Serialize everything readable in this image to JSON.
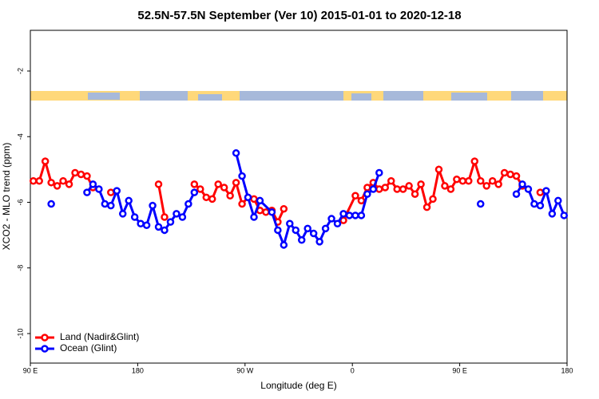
{
  "chart_data": {
    "type": "line",
    "title": "52.5N-57.5N September (Ver 10)   2015-01-01 to 2020-12-18",
    "x_label": "Longitude (deg E)",
    "y_label": "XCO2 - MLO trend (ppm)",
    "xlim": [
      90,
      540
    ],
    "ylim": [
      -10.9,
      -0.76
    ],
    "xticks": [
      {
        "value": 90,
        "label": "90 E"
      },
      180,
      {
        "value": 270,
        "label": "90 W"
      },
      {
        "value": 360,
        "label": "0"
      },
      {
        "value": 450,
        "label": "90 E"
      },
      {
        "value": 540,
        "label": "180"
      }
    ],
    "yticks": [
      -2,
      -4,
      -6,
      -8,
      -10
    ],
    "legend": "bottom-left",
    "series": [
      {
        "name": "Land (Nadir&Glint)",
        "color": "#ff0000",
        "x": [
          92.5,
          97.5,
          102.5,
          107.5,
          112.5,
          117.5,
          122.5,
          127.5,
          132.5,
          137.5,
          142.5,
          null,
          157.5,
          null,
          197.5,
          202.5,
          null,
          227.5,
          232.5,
          237.5,
          242.5,
          247.5,
          252.5,
          257.5,
          262.5,
          267.5,
          272.5,
          277.5,
          282.5,
          287.5,
          292.5,
          297.5,
          302.5,
          null,
          352.5,
          362.5,
          367.5,
          372.5,
          377.5,
          382.5,
          387.5,
          392.5,
          397.5,
          402.5,
          407.5,
          412.5,
          417.5,
          422.5,
          427.5,
          432.5,
          437.5,
          442.5,
          447.5,
          452.5,
          457.5,
          462.5,
          467.5,
          472.5,
          477.5,
          482.5,
          487.5,
          492.5,
          497.5,
          502.5,
          null,
          517.5
        ],
        "values": [
          -5.35,
          -5.35,
          -4.75,
          -5.4,
          -5.5,
          -5.35,
          -5.45,
          -5.1,
          -5.15,
          -5.2,
          -5.55,
          null,
          -5.7,
          null,
          -5.45,
          -6.45,
          null,
          -5.45,
          -5.6,
          -5.85,
          -5.9,
          -5.45,
          -5.55,
          -5.8,
          -5.4,
          -6.05,
          -5.85,
          -5.9,
          -6.25,
          -6.3,
          -6.25,
          -6.6,
          -6.2,
          null,
          -6.55,
          -5.8,
          -5.95,
          -5.55,
          -5.4,
          -5.6,
          -5.55,
          -5.35,
          -5.6,
          -5.6,
          -5.5,
          -5.75,
          -5.45,
          -6.15,
          -5.9,
          -5.0,
          -5.5,
          -5.6,
          -5.3,
          -5.35,
          -5.35,
          -4.75,
          -5.35,
          -5.5,
          -5.35,
          -5.45,
          -5.1,
          -5.15,
          -5.2,
          -5.5,
          null,
          -5.7
        ]
      },
      {
        "name": "Ocean (Glint)",
        "color": "#0000ff",
        "x": [
          107.5,
          null,
          137.5,
          142.5,
          147.5,
          152.5,
          157.5,
          162.5,
          167.5,
          172.5,
          177.5,
          182.5,
          187.5,
          192.5,
          197.5,
          202.5,
          207.5,
          212.5,
          217.5,
          222.5,
          227.5,
          null,
          262.5,
          267.5,
          272.5,
          277.5,
          282.5,
          292.5,
          297.5,
          302.5,
          307.5,
          312.5,
          317.5,
          322.5,
          327.5,
          332.5,
          337.5,
          342.5,
          347.5,
          352.5,
          357.5,
          362.5,
          367.5,
          372.5,
          377.5,
          382.5,
          null,
          467.5,
          null,
          497.5,
          502.5,
          507.5,
          512.5,
          517.5,
          522.5,
          527.5,
          532.5,
          537.5
        ],
        "values": [
          -6.05,
          null,
          -5.7,
          -5.45,
          -5.6,
          -6.05,
          -6.1,
          -5.65,
          -6.35,
          -5.95,
          -6.45,
          -6.65,
          -6.7,
          -6.1,
          -6.75,
          -6.85,
          -6.6,
          -6.35,
          -6.45,
          -6.05,
          -5.7,
          null,
          -4.5,
          -5.2,
          -5.85,
          -6.45,
          -5.95,
          -6.3,
          -6.85,
          -7.3,
          -6.65,
          -6.85,
          -7.15,
          -6.8,
          -6.95,
          -7.2,
          -6.8,
          -6.5,
          -6.65,
          -6.35,
          -6.4,
          -6.4,
          -6.4,
          -5.75,
          -5.6,
          -5.1,
          null,
          -6.05,
          null,
          -5.75,
          -5.45,
          -5.6,
          -6.05,
          -6.1,
          -5.65,
          -6.35,
          -5.95,
          -6.4
        ]
      }
    ]
  }
}
